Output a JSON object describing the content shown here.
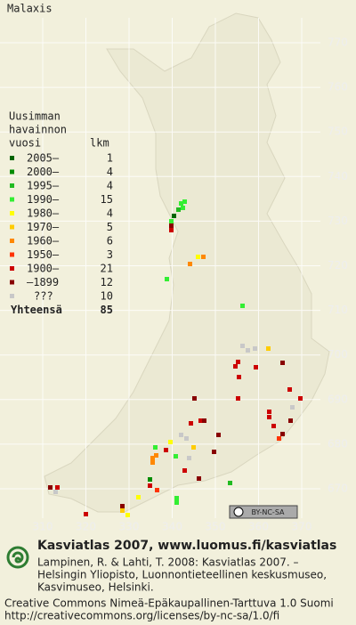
{
  "title": "Malaxis",
  "grid": {
    "north": [
      770,
      760,
      750,
      740,
      730,
      720,
      710,
      700,
      690,
      680,
      670
    ],
    "east": [
      310,
      320,
      330,
      340,
      350,
      360,
      370
    ]
  },
  "legend": {
    "header": [
      "Uusimman",
      "havainnon",
      "vuosi"
    ],
    "count_header": "lkm",
    "rows": [
      {
        "label": "2005–",
        "count": 1,
        "color": "#006400"
      },
      {
        "label": "2000–",
        "count": 4,
        "color": "#008c00"
      },
      {
        "label": "1995–",
        "count": 4,
        "color": "#22bb22"
      },
      {
        "label": "1990–",
        "count": 15,
        "color": "#33ee33"
      },
      {
        "label": "1980–",
        "count": 4,
        "color": "#ffff00"
      },
      {
        "label": "1970–",
        "count": 5,
        "color": "#ffcc00"
      },
      {
        "label": "1960–",
        "count": 6,
        "color": "#ff8800"
      },
      {
        "label": "1950–",
        "count": 3,
        "color": "#ff3300"
      },
      {
        "label": "1900–",
        "count": 21,
        "color": "#cc0000"
      },
      {
        "label": "–1899",
        "count": 12,
        "color": "#880000"
      },
      {
        "label": "???",
        "count": 10,
        "color": "#c8c8c8"
      }
    ],
    "total": {
      "label": "Yhteensä",
      "count": 85
    }
  },
  "badge": "BY-NC-SA",
  "footer": {
    "heading": "Kasviatlas 2007, www.luomus.fi/kasviatlas",
    "citation": [
      "Lampinen, R. & Lahti, T. 2008: Kasviatlas 2007. –",
      "Helsingin Yliopisto, Luonnontieteellinen keskusmuseo,",
      "Kasvimuseo, Helsinki."
    ],
    "license": [
      "Creative Commons Nimeä-Epäkaupallinen-Tarttuva 1.0 Suomi",
      "http://creativecommons.org/licenses/by-nc-sa/1.0/fi"
    ]
  }
}
